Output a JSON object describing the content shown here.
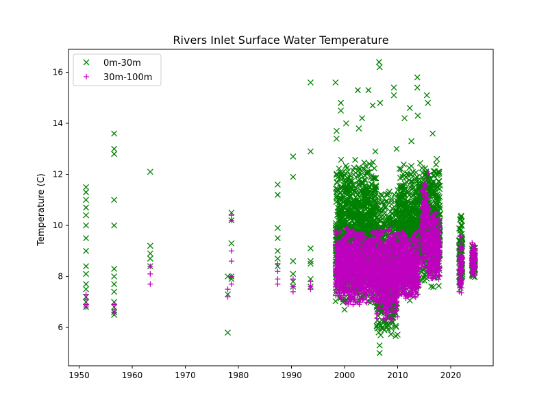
{
  "chart_data": {
    "type": "scatter",
    "title": "Rivers Inlet Surface Water Temperature",
    "xlabel": "",
    "ylabel": "Temperature (C)",
    "xlim": [
      1948,
      2028
    ],
    "ylim": [
      4.5,
      16.9
    ],
    "xticks": [
      1950,
      1960,
      1970,
      1980,
      1990,
      2000,
      2010,
      2020
    ],
    "yticks": [
      6,
      8,
      10,
      12,
      14,
      16
    ],
    "grid": false,
    "legend_position": "top-left",
    "series": [
      {
        "name": "0m-30m",
        "marker": "x",
        "color": "#008000",
        "points": [
          [
            1951.3,
            11.5
          ],
          [
            1951.3,
            11.3
          ],
          [
            1951.3,
            11.0
          ],
          [
            1951.3,
            10.7
          ],
          [
            1951.3,
            10.4
          ],
          [
            1951.3,
            10.0
          ],
          [
            1951.3,
            9.5
          ],
          [
            1951.3,
            9.0
          ],
          [
            1951.3,
            8.4
          ],
          [
            1951.3,
            8.1
          ],
          [
            1951.3,
            7.7
          ],
          [
            1951.3,
            7.5
          ],
          [
            1951.3,
            7.2
          ],
          [
            1951.3,
            7.0
          ],
          [
            1951.3,
            6.8
          ],
          [
            1956.6,
            13.6
          ],
          [
            1956.6,
            13.0
          ],
          [
            1956.6,
            12.8
          ],
          [
            1956.6,
            11.0
          ],
          [
            1956.6,
            10.0
          ],
          [
            1956.6,
            8.3
          ],
          [
            1956.6,
            8.0
          ],
          [
            1956.6,
            7.7
          ],
          [
            1956.6,
            7.4
          ],
          [
            1956.6,
            7.0
          ],
          [
            1956.6,
            6.8
          ],
          [
            1956.6,
            6.6
          ],
          [
            1956.6,
            6.5
          ],
          [
            1963.4,
            12.1
          ],
          [
            1963.4,
            9.2
          ],
          [
            1963.4,
            8.9
          ],
          [
            1963.4,
            8.7
          ],
          [
            1963.4,
            8.4
          ],
          [
            1978.0,
            5.8
          ],
          [
            1978.0,
            8.0
          ],
          [
            1978.0,
            7.3
          ],
          [
            1978.7,
            10.5
          ],
          [
            1978.7,
            10.2
          ],
          [
            1978.7,
            9.3
          ],
          [
            1978.7,
            8.0
          ],
          [
            1978.7,
            7.9
          ],
          [
            1987.4,
            11.6
          ],
          [
            1987.4,
            11.2
          ],
          [
            1987.4,
            9.9
          ],
          [
            1987.4,
            9.5
          ],
          [
            1987.4,
            9.0
          ],
          [
            1987.4,
            8.7
          ],
          [
            1987.4,
            8.4
          ],
          [
            1990.3,
            12.7
          ],
          [
            1990.3,
            11.9
          ],
          [
            1990.3,
            8.6
          ],
          [
            1990.3,
            8.1
          ],
          [
            1990.3,
            7.8
          ],
          [
            1990.3,
            7.6
          ],
          [
            1993.6,
            15.6
          ],
          [
            1993.6,
            12.9
          ],
          [
            1993.6,
            9.1
          ],
          [
            1993.6,
            8.6
          ],
          [
            1993.6,
            8.5
          ],
          [
            1993.6,
            7.9
          ],
          [
            1993.6,
            7.6
          ],
          [
            1998.3,
            15.6
          ],
          [
            1998.5,
            13.7
          ],
          [
            1998.5,
            13.4
          ],
          [
            1999.3,
            14.8
          ],
          [
            1999.3,
            14.5
          ],
          [
            2000.3,
            14.0
          ],
          [
            2002.5,
            15.3
          ],
          [
            2002.7,
            13.8
          ],
          [
            2003.3,
            14.2
          ],
          [
            2004.5,
            15.3
          ],
          [
            2005.3,
            14.7
          ],
          [
            2005.8,
            12.9
          ],
          [
            2006.5,
            16.4
          ],
          [
            2006.6,
            16.2
          ],
          [
            2006.7,
            14.8
          ],
          [
            2009.3,
            15.4
          ],
          [
            2009.3,
            15.1
          ],
          [
            2009.8,
            13.0
          ],
          [
            2011.3,
            14.2
          ],
          [
            2012.3,
            14.6
          ],
          [
            2012.6,
            13.3
          ],
          [
            2013.7,
            15.8
          ],
          [
            2013.7,
            15.4
          ],
          [
            2013.8,
            14.3
          ],
          [
            2015.5,
            15.1
          ],
          [
            2015.7,
            14.8
          ],
          [
            2016.6,
            13.6
          ],
          [
            2017.4,
            12.6
          ],
          [
            2006.6,
            5.0
          ],
          [
            2006.6,
            5.3
          ],
          [
            2006.8,
            5.7
          ],
          [
            2007.5,
            5.9
          ],
          [
            2008.2,
            6.1
          ],
          [
            2008.5,
            6.4
          ],
          [
            2009.2,
            7.2
          ],
          [
            2000.0,
            6.7
          ],
          [
            2001.5,
            7.1
          ],
          [
            2003.0,
            7.2
          ]
        ],
        "clusters": [
          {
            "x": [
              1998.3,
              2006.0
            ],
            "y": [
              6.8,
              12.7
            ]
          },
          {
            "x": [
              2006.0,
              2010.0
            ],
            "y": [
              5.4,
              11.6
            ]
          },
          {
            "x": [
              2010.0,
              2014.0
            ],
            "y": [
              7.0,
              12.5
            ]
          },
          {
            "x": [
              2014.0,
              2018.0
            ],
            "y": [
              7.5,
              12.5
            ]
          },
          {
            "x": [
              2021.6,
              2022.2
            ],
            "y": [
              7.3,
              10.8
            ]
          },
          {
            "x": [
              2024.0,
              2024.6
            ],
            "y": [
              7.8,
              9.3
            ]
          }
        ]
      },
      {
        "name": "30m-100m",
        "marker": "+",
        "color": "#bf00bf",
        "points": [
          [
            1951.3,
            7.3
          ],
          [
            1951.3,
            7.1
          ],
          [
            1951.3,
            6.9
          ],
          [
            1951.3,
            6.8
          ],
          [
            1956.6,
            6.9
          ],
          [
            1956.6,
            6.7
          ],
          [
            1956.6,
            6.6
          ],
          [
            1963.4,
            8.4
          ],
          [
            1963.4,
            8.1
          ],
          [
            1963.4,
            7.7
          ],
          [
            1978.0,
            7.5
          ],
          [
            1978.0,
            7.2
          ],
          [
            1978.7,
            10.4
          ],
          [
            1978.7,
            10.2
          ],
          [
            1978.7,
            9.0
          ],
          [
            1978.7,
            8.6
          ],
          [
            1978.7,
            8.0
          ],
          [
            1978.7,
            7.7
          ],
          [
            1987.4,
            8.5
          ],
          [
            1987.4,
            8.2
          ],
          [
            1987.4,
            7.9
          ],
          [
            1987.4,
            7.7
          ],
          [
            1990.3,
            7.9
          ],
          [
            1990.3,
            7.6
          ],
          [
            1990.3,
            7.4
          ],
          [
            1993.6,
            7.8
          ],
          [
            1993.6,
            7.6
          ],
          [
            1993.6,
            7.5
          ]
        ],
        "clusters": [
          {
            "x": [
              1998.3,
              2006.0
            ],
            "y": [
              6.8,
              10.0
            ]
          },
          {
            "x": [
              2006.0,
              2010.0
            ],
            "y": [
              6.2,
              10.0
            ]
          },
          {
            "x": [
              2010.0,
              2014.0
            ],
            "y": [
              7.0,
              9.8
            ]
          },
          {
            "x": [
              2014.5,
              2015.8
            ],
            "y": [
              8.0,
              12.1
            ]
          },
          {
            "x": [
              2015.8,
              2018.0
            ],
            "y": [
              7.7,
              10.6
            ]
          },
          {
            "x": [
              2021.6,
              2022.2
            ],
            "y": [
              7.2,
              9.6
            ]
          },
          {
            "x": [
              2024.0,
              2024.6
            ],
            "y": [
              8.0,
              9.4
            ]
          }
        ]
      }
    ]
  }
}
